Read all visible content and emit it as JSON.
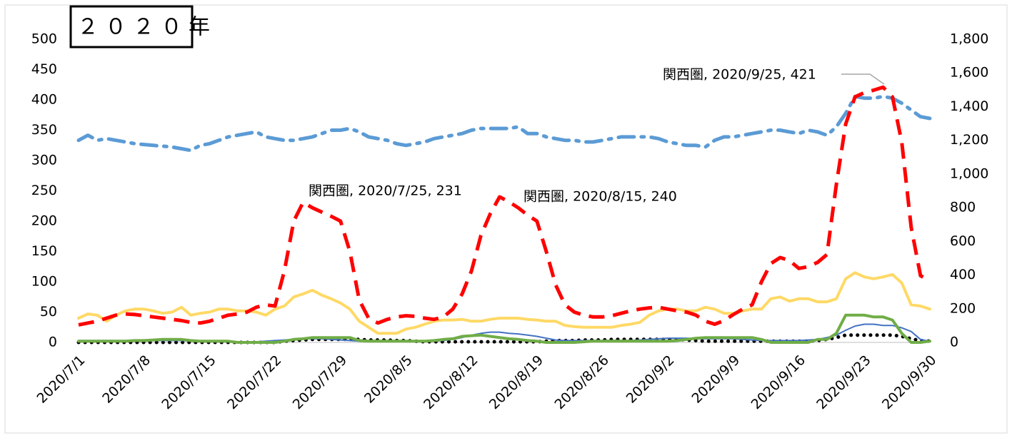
{
  "chart_data": {
    "type": "line",
    "title": "２０２０年",
    "categories": [
      "2020/7/1",
      null,
      null,
      null,
      null,
      null,
      null,
      "2020/7/8",
      null,
      null,
      null,
      null,
      null,
      null,
      "2020/7/15",
      null,
      null,
      null,
      null,
      null,
      null,
      "2020/7/22",
      null,
      null,
      null,
      null,
      null,
      null,
      "2020/7/29",
      null,
      null,
      null,
      null,
      null,
      null,
      "2020/8/5",
      null,
      null,
      null,
      null,
      null,
      null,
      "2020/8/12",
      null,
      null,
      null,
      null,
      null,
      null,
      "2020/8/19",
      null,
      null,
      null,
      null,
      null,
      null,
      "2020/8/26",
      null,
      null,
      null,
      null,
      null,
      null,
      "2020/9/2",
      null,
      null,
      null,
      null,
      null,
      null,
      "2020/9/9",
      null,
      null,
      null,
      null,
      null,
      null,
      "2020/9/16",
      null,
      null,
      null,
      null,
      null,
      null,
      "2020/9/23",
      null,
      null,
      null,
      null,
      null,
      null,
      "2020/9/30"
    ],
    "series": [
      {
        "color": "#000000",
        "line_style": "dotted",
        "axis": "y",
        "values": [
          0,
          0,
          0,
          0,
          0,
          0,
          0,
          0,
          0,
          0,
          0,
          0,
          0,
          0,
          0,
          0,
          0,
          0,
          0,
          0,
          0,
          0,
          2,
          3,
          4,
          5,
          5,
          5,
          5,
          5,
          5,
          4,
          4,
          4,
          3,
          3,
          2,
          1,
          1,
          1,
          1,
          1,
          1,
          1,
          1,
          1,
          1,
          1,
          1,
          1,
          2,
          3,
          3,
          3,
          4,
          4,
          4,
          5,
          5,
          5,
          5,
          5,
          5,
          5,
          5,
          4,
          3,
          2,
          2,
          2,
          2,
          2,
          2,
          2,
          2,
          2,
          2,
          2,
          2,
          3,
          5,
          8,
          12,
          12,
          12,
          12,
          12,
          12,
          10,
          6,
          3,
          2
        ]
      },
      {
        "color": "#4472c4",
        "line_style": "thin",
        "axis": "y",
        "values": [
          3,
          3,
          3,
          3,
          3,
          3,
          3,
          3,
          3,
          3,
          3,
          3,
          2,
          2,
          2,
          1,
          1,
          1,
          1,
          1,
          2,
          3,
          4,
          5,
          6,
          6,
          6,
          5,
          4,
          3,
          2,
          2,
          2,
          2,
          2,
          2,
          2,
          2,
          2,
          3,
          5,
          8,
          12,
          15,
          17,
          17,
          15,
          14,
          12,
          10,
          7,
          4,
          3,
          3,
          3,
          3,
          3,
          3,
          3,
          3,
          4,
          5,
          6,
          7,
          7,
          7,
          6,
          6,
          6,
          6,
          6,
          5,
          4,
          3,
          3,
          3,
          3,
          3,
          4,
          5,
          8,
          12,
          20,
          27,
          30,
          30,
          28,
          28,
          24,
          18,
          5,
          2
        ]
      },
      {
        "color": "#70ad47",
        "line_style": "solid",
        "axis": "y",
        "values": [
          2,
          2,
          2,
          2,
          2,
          2,
          3,
          3,
          4,
          5,
          5,
          5,
          3,
          2,
          2,
          2,
          2,
          0,
          0,
          0,
          0,
          0,
          2,
          5,
          6,
          8,
          8,
          8,
          8,
          8,
          3,
          2,
          2,
          2,
          2,
          2,
          2,
          2,
          3,
          5,
          6,
          10,
          11,
          12,
          10,
          8,
          6,
          5,
          3,
          2,
          0,
          0,
          0,
          0,
          1,
          2,
          2,
          2,
          2,
          2,
          2,
          2,
          2,
          2,
          3,
          5,
          7,
          8,
          8,
          8,
          8,
          8,
          8,
          5,
          0,
          0,
          0,
          0,
          0,
          5,
          5,
          15,
          45,
          45,
          45,
          42,
          42,
          37,
          15,
          0,
          0,
          2
        ]
      },
      {
        "color": "#ffd966",
        "line_style": "solid",
        "axis": "y",
        "values": [
          40,
          47,
          45,
          35,
          45,
          52,
          55,
          55,
          52,
          48,
          50,
          58,
          45,
          48,
          50,
          55,
          55,
          52,
          52,
          50,
          45,
          55,
          60,
          75,
          80,
          86,
          78,
          72,
          65,
          55,
          35,
          25,
          15,
          15,
          15,
          22,
          25,
          30,
          35,
          37,
          37,
          38,
          35,
          35,
          38,
          40,
          40,
          40,
          38,
          37,
          35,
          35,
          28,
          26,
          25,
          25,
          25,
          25,
          28,
          30,
          33,
          45,
          52,
          55,
          55,
          52,
          52,
          58,
          55,
          48,
          48,
          52,
          55,
          55,
          72,
          75,
          68,
          72,
          72,
          67,
          67,
          72,
          105,
          115,
          108,
          105,
          108,
          112,
          98,
          62,
          60,
          55
        ]
      },
      {
        "color": "#5b9bd5",
        "line_style": "dashdot",
        "axis": "y2",
        "values": [
          1200,
          1230,
          1200,
          1210,
          1200,
          1190,
          1180,
          1175,
          1170,
          1165,
          1160,
          1150,
          1140,
          1170,
          1180,
          1200,
          1220,
          1230,
          1240,
          1250,
          1220,
          1210,
          1200,
          1200,
          1210,
          1220,
          1240,
          1260,
          1260,
          1270,
          1250,
          1220,
          1210,
          1200,
          1180,
          1170,
          1180,
          1190,
          1210,
          1220,
          1230,
          1240,
          1260,
          1270,
          1270,
          1270,
          1270,
          1280,
          1240,
          1240,
          1220,
          1210,
          1200,
          1200,
          1190,
          1190,
          1200,
          1210,
          1220,
          1220,
          1220,
          1220,
          1210,
          1190,
          1180,
          1170,
          1170,
          1160,
          1200,
          1220,
          1220,
          1230,
          1240,
          1250,
          1260,
          1260,
          1250,
          1240,
          1260,
          1250,
          1230,
          1280,
          1360,
          1460,
          1450,
          1450,
          1460,
          1450,
          1420,
          1380,
          1340,
          1330
        ]
      },
      {
        "color": "#ff0000",
        "line_style": "dashed",
        "axis": "y",
        "values": [
          29,
          32,
          35,
          40,
          45,
          47,
          46,
          44,
          42,
          40,
          38,
          36,
          33,
          32,
          35,
          40,
          45,
          47,
          50,
          58,
          62,
          60,
          118,
          200,
          231,
          222,
          215,
          208,
          200,
          150,
          70,
          40,
          32,
          38,
          42,
          44,
          43,
          40,
          38,
          42,
          55,
          80,
          118,
          176,
          212,
          240,
          232,
          222,
          210,
          200,
          150,
          95,
          62,
          50,
          45,
          42,
          42,
          44,
          48,
          52,
          55,
          57,
          58,
          55,
          52,
          50,
          45,
          35,
          30,
          36,
          46,
          55,
          62,
          100,
          130,
          140,
          135,
          122,
          125,
          132,
          145,
          260,
          360,
          405,
          412,
          416,
          421,
          405,
          330,
          190,
          110,
          102
        ]
      }
    ],
    "annotations": [
      "関西圏, 2020/7/25, 231",
      "関西圏, 2020/8/15, 240",
      "関西圏, 2020/9/25, 421"
    ],
    "ylim": [
      0,
      500
    ],
    "yticks": [
      0,
      50,
      100,
      150,
      200,
      250,
      300,
      350,
      400,
      450,
      500
    ],
    "y2lim": [
      0,
      1800
    ],
    "y2ticks": [
      0,
      200,
      400,
      600,
      800,
      {
        "value": 1000,
        "label": "1,000"
      },
      {
        "value": 1200,
        "label": "1,200"
      },
      {
        "value": 1400,
        "label": "1,400"
      },
      {
        "value": 1600,
        "label": "1,600"
      },
      {
        "value": 1800,
        "label": "1,800"
      }
    ],
    "grid": false
  }
}
